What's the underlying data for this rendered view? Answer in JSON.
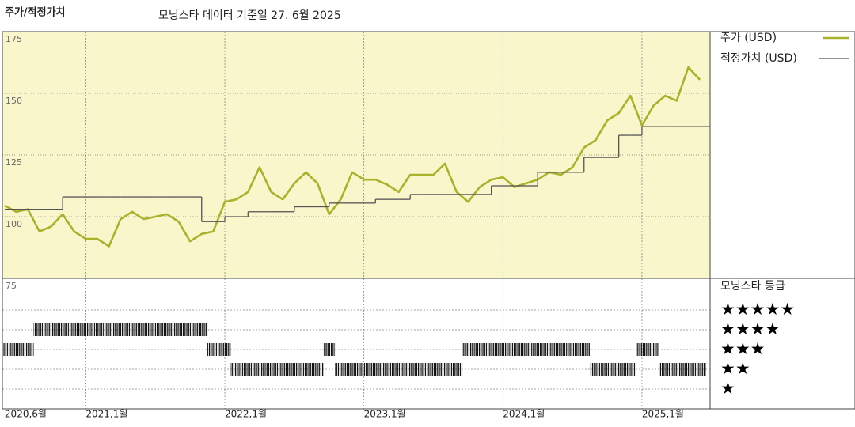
{
  "chart_data": {
    "type": "line",
    "title": "주가/적정가치",
    "subtitle": "모닝스타 데이터 기준일 27. 6월 2025",
    "x": [
      "2020-06",
      "2020-07",
      "2020-08",
      "2020-09",
      "2020-10",
      "2020-11",
      "2020-12",
      "2021-01",
      "2021-02",
      "2021-03",
      "2021-04",
      "2021-05",
      "2021-06",
      "2021-07",
      "2021-08",
      "2021-09",
      "2021-10",
      "2021-11",
      "2021-12",
      "2022-01",
      "2022-02",
      "2022-03",
      "2022-04",
      "2022-05",
      "2022-06",
      "2022-07",
      "2022-08",
      "2022-09",
      "2022-10",
      "2022-11",
      "2022-12",
      "2023-01",
      "2023-02",
      "2023-03",
      "2023-04",
      "2023-05",
      "2023-06",
      "2023-07",
      "2023-08",
      "2023-09",
      "2023-10",
      "2023-11",
      "2023-12",
      "2024-01",
      "2024-02",
      "2024-03",
      "2024-04",
      "2024-05",
      "2024-06",
      "2024-07",
      "2024-08",
      "2024-09",
      "2024-10",
      "2024-11",
      "2024-12",
      "2025-01",
      "2025-02",
      "2025-03",
      "2025-04",
      "2025-05",
      "2025-06"
    ],
    "series": [
      {
        "name": "주가 (USD)",
        "color": "#a9b22c",
        "values": [
          104.5,
          102,
          103,
          94,
          96,
          101,
          94,
          91,
          91,
          88,
          99,
          102,
          99,
          100,
          101,
          98,
          90,
          93,
          94,
          106,
          107,
          110,
          120,
          110,
          107,
          113.5,
          118,
          113.5,
          101,
          107,
          118,
          115,
          115,
          113,
          110,
          117,
          117,
          117,
          121.5,
          110,
          106,
          112,
          115,
          116,
          112,
          113.5,
          115,
          118,
          117,
          120,
          128,
          131,
          139,
          142,
          149,
          137,
          145,
          149,
          147,
          160.5,
          155.5
        ]
      },
      {
        "name": "적정가치 (USD)",
        "color": "#555555",
        "step": true,
        "values": [
          103,
          103,
          103,
          103,
          103,
          108,
          108,
          108,
          108,
          108,
          108,
          108,
          108,
          108,
          108,
          108,
          108,
          98,
          98,
          100,
          100,
          102,
          102,
          102,
          102,
          104,
          104,
          104,
          105.5,
          105.5,
          105.5,
          105.5,
          107,
          107,
          107,
          109,
          109,
          109,
          109,
          109,
          109,
          109,
          112.5,
          112.5,
          112.5,
          112.5,
          118,
          118,
          118,
          118,
          124,
          124,
          124,
          133,
          133,
          136.5,
          136.5,
          136.5,
          136.5,
          136.5,
          136.5
        ]
      }
    ],
    "xlim": [
      2020.4,
      2025.49
    ],
    "xticks": [
      {
        "value": 2020.4167,
        "label": "2020,6월"
      },
      {
        "value": 2021,
        "label": "2021,1월"
      },
      {
        "value": 2022,
        "label": "2022,1월"
      },
      {
        "value": 2023,
        "label": "2023,1월"
      },
      {
        "value": 2024,
        "label": "2024,1월"
      },
      {
        "value": 2025,
        "label": "2025,1월"
      }
    ],
    "ylim": [
      75,
      175
    ],
    "yticks": [
      75,
      100,
      125,
      150,
      175
    ],
    "grid": true,
    "legend": "upper right",
    "background": "#faf6cc",
    "rating": {
      "name": "모닝스타 등급",
      "values": [
        3,
        3,
        3,
        4,
        4,
        4,
        4,
        4,
        4,
        4,
        4,
        4,
        4,
        4,
        4,
        4,
        4,
        4,
        3,
        3,
        2,
        2,
        2,
        2,
        2,
        2,
        2,
        2,
        3,
        2,
        2,
        2,
        2,
        2,
        2,
        2,
        2,
        2,
        2,
        2,
        3,
        3,
        3,
        3,
        3,
        3,
        3,
        3,
        3,
        3,
        3,
        2,
        2,
        2,
        2,
        3,
        3,
        2,
        2,
        2,
        2
      ],
      "ylim": [
        0,
        6.6
      ],
      "yticks": [
        {
          "value": 5,
          "label": "★★★★★"
        },
        {
          "value": 4,
          "label": "★★★★"
        },
        {
          "value": 3,
          "label": "★★★"
        },
        {
          "value": 2,
          "label": "★★"
        },
        {
          "value": 1,
          "label": "★"
        }
      ]
    }
  }
}
